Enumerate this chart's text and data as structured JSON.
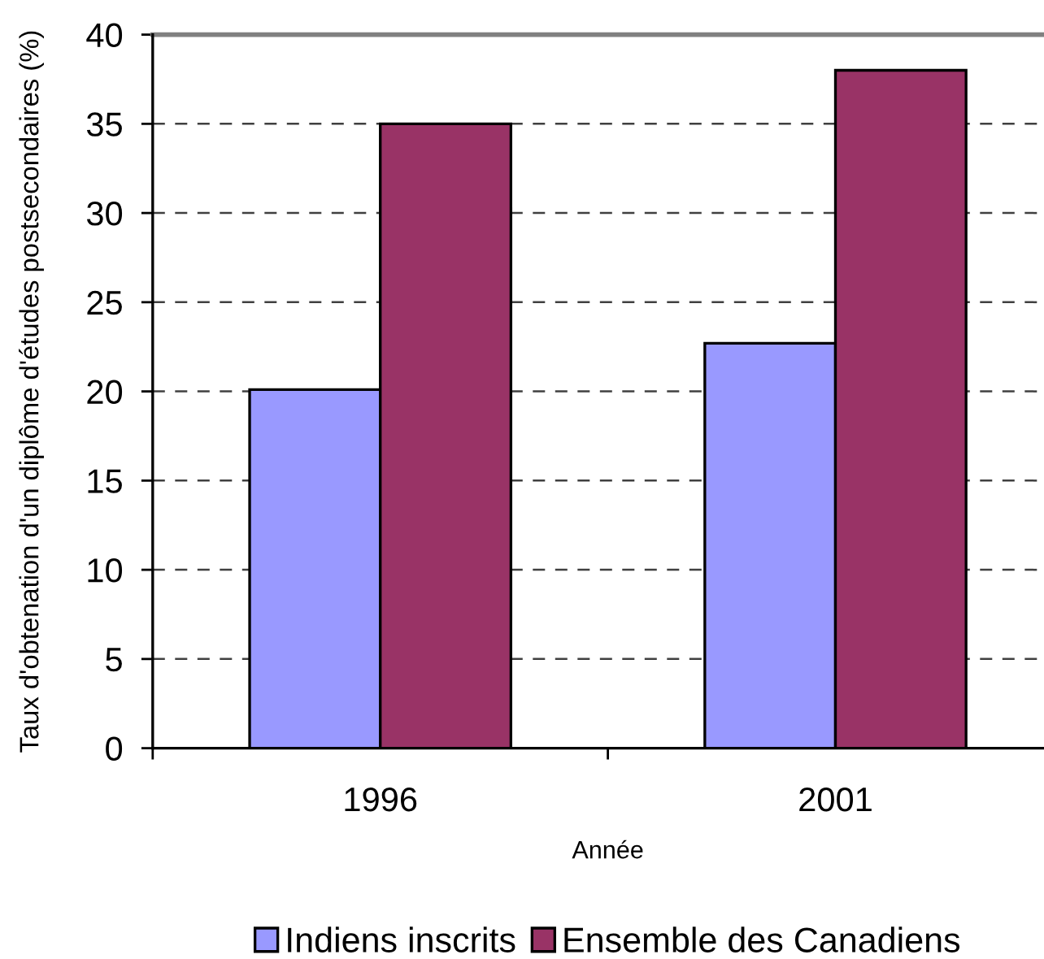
{
  "chart_data": {
    "type": "bar",
    "categories": [
      "1996",
      "2001"
    ],
    "series": [
      {
        "name": "Indiens inscrits",
        "color": "#9999ff",
        "values": [
          20.1,
          22.7
        ]
      },
      {
        "name": "Ensemble des Canadiens",
        "color": "#993366",
        "values": [
          35,
          38.0
        ]
      }
    ],
    "xlabel": "Année",
    "ylabel": "Taux d'obtenation d'un diplôme d'études postsecondaires (%)",
    "ylim": [
      0,
      40
    ],
    "yticks": [
      0,
      5,
      10,
      15,
      20,
      25,
      30,
      35,
      40
    ],
    "grid": "y",
    "legend": "bottom"
  }
}
